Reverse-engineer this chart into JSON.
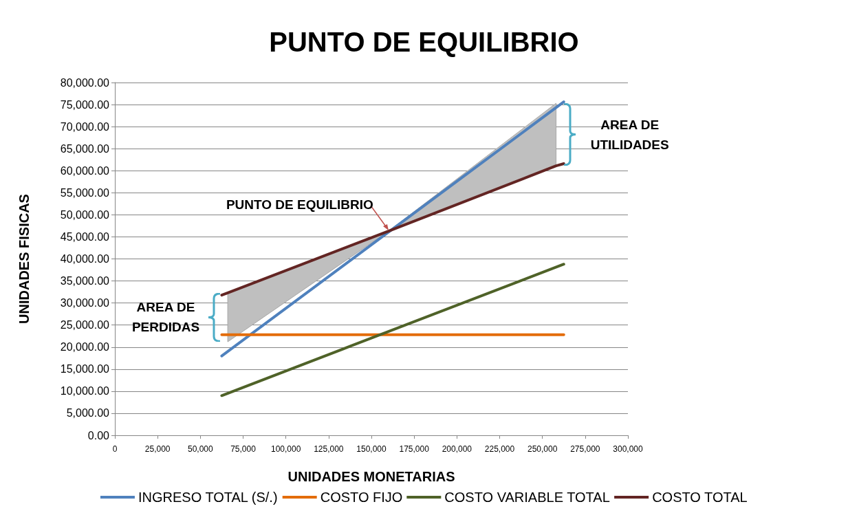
{
  "chart_data": {
    "type": "line",
    "title": "PUNTO DE EQUILIBRIO",
    "xlabel": "UNIDADES MONETARIAS",
    "ylabel": "UNIDADES FISICAS",
    "xlim": [
      0,
      300000
    ],
    "xticks": [
      0,
      {
        "value": 25000,
        "label": "25,000"
      },
      {
        "value": 50000,
        "label": "50,000"
      },
      {
        "value": 75000,
        "label": "75,000"
      },
      {
        "value": 100000,
        "label": "100,000"
      },
      {
        "value": 125000,
        "label": "125,000"
      },
      {
        "value": 150000,
        "label": "150,000"
      },
      {
        "value": 175000,
        "label": "175,000"
      },
      {
        "value": 200000,
        "label": "200,000"
      },
      {
        "value": 225000,
        "label": "225,000"
      },
      {
        "value": 250000,
        "label": "250,000"
      },
      {
        "value": 275000,
        "label": "275,000"
      },
      {
        "value": 300000,
        "label": "300,000"
      }
    ],
    "ylim": [
      0,
      80000
    ],
    "yticks": [
      {
        "value": 0,
        "label": "0.00"
      },
      {
        "value": 5000,
        "label": "5,000.00"
      },
      {
        "value": 10000,
        "label": "10,000.00"
      },
      {
        "value": 15000,
        "label": "15,000.00"
      },
      {
        "value": 20000,
        "label": "20,000.00"
      },
      {
        "value": 25000,
        "label": "25,000.00"
      },
      {
        "value": 30000,
        "label": "30,000.00"
      },
      {
        "value": 35000,
        "label": "35,000.00"
      },
      {
        "value": 40000,
        "label": "40,000.00"
      },
      {
        "value": 45000,
        "label": "45,000.00"
      },
      {
        "value": 50000,
        "label": "50,000.00"
      },
      {
        "value": 55000,
        "label": "55,000.00"
      },
      {
        "value": 60000,
        "label": "60,000.00"
      },
      {
        "value": 65000,
        "label": "65,000.00"
      },
      {
        "value": 70000,
        "label": "70,000.00"
      },
      {
        "value": 75000,
        "label": "75,000.00"
      },
      {
        "value": 80000,
        "label": "80,000.00"
      }
    ],
    "grid": "y",
    "legend": "bottom",
    "marker": "none",
    "line_style": "solid",
    "series": [
      {
        "name": "INGRESO TOTAL (S/.)",
        "color": "#4f81bd",
        "x": [
          62500,
          262500
        ],
        "values": [
          18000,
          75600
        ]
      },
      {
        "name": "COSTO FIJO",
        "color": "#e36c09",
        "x": [
          62500,
          262500
        ],
        "values": [
          22800,
          22800
        ]
      },
      {
        "name": "COSTO VARIABLE TOTAL",
        "color": "#4f6228",
        "x": [
          62500,
          262500
        ],
        "values": [
          9000,
          38800
        ]
      },
      {
        "name": "COSTO TOTAL",
        "color": "#632523",
        "x": [
          62500,
          66000,
          160000,
          258000,
          262500
        ],
        "values": [
          31800,
          32300,
          46300,
          61100,
          61600
        ],
        "lower": [
          null,
          21200,
          46300,
          61100,
          null
        ],
        "upper": [
          null,
          32300,
          46300,
          75300,
          null
        ]
      }
    ],
    "annotations": [
      {
        "text": "PUNTO DE EQUILIBRIO",
        "x": 160000,
        "y": 46500
      },
      "AREA DE PERDIDAS",
      "AREA DE UTILIDADES"
    ]
  }
}
